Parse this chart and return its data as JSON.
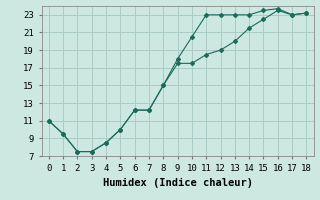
{
  "xlabel": "Humidex (Indice chaleur)",
  "bg_color": "#cce8e0",
  "grid_color": "#aaccc4",
  "line_color": "#1a6b5a",
  "xlim": [
    -0.5,
    18.5
  ],
  "ylim": [
    7,
    24
  ],
  "xticks": [
    0,
    1,
    2,
    3,
    4,
    5,
    6,
    7,
    8,
    9,
    10,
    11,
    12,
    13,
    14,
    15,
    16,
    17,
    18
  ],
  "yticks": [
    7,
    9,
    11,
    13,
    15,
    17,
    19,
    21,
    23
  ],
  "line1_x": [
    0,
    1,
    2,
    3,
    4,
    5,
    6,
    7,
    8,
    9,
    10,
    11,
    12,
    13,
    14,
    15,
    16,
    17,
    18
  ],
  "line1_y": [
    11,
    9.5,
    7.5,
    7.5,
    8.5,
    10.0,
    12.2,
    12.2,
    15.0,
    18.0,
    20.5,
    23.0,
    23.0,
    23.0,
    23.0,
    23.5,
    23.7,
    23.0,
    23.2
  ],
  "line2_x": [
    0,
    1,
    2,
    3,
    4,
    5,
    6,
    7,
    8,
    9,
    10,
    11,
    12,
    13,
    14,
    15,
    16,
    17,
    18
  ],
  "line2_y": [
    11,
    9.5,
    7.5,
    7.5,
    8.5,
    10.0,
    12.2,
    12.2,
    15.0,
    17.5,
    17.5,
    18.5,
    19.0,
    20.0,
    21.5,
    22.5,
    23.5,
    23.0,
    23.2
  ],
  "font_family": "monospace",
  "tick_fontsize": 6.5,
  "label_fontsize": 7.5
}
